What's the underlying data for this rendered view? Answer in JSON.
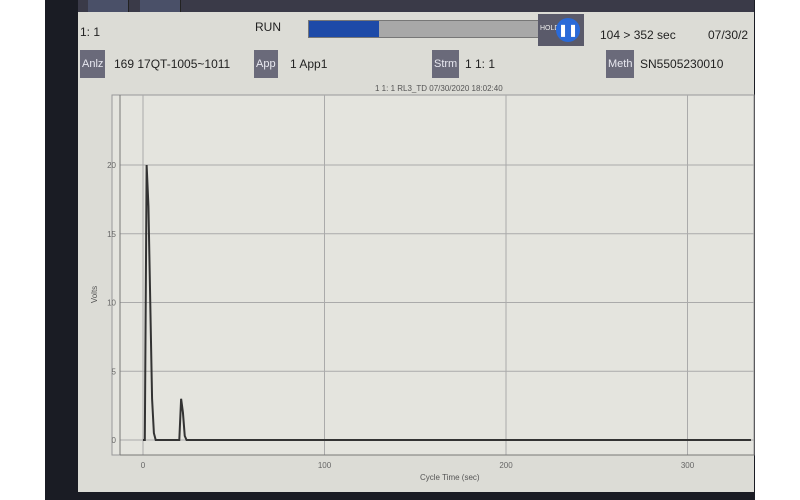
{
  "header": {
    "position": "1: 1",
    "run_label": "RUN",
    "progress_percent": 30,
    "hold_label": "HOLD",
    "time_status": "104 > 352 sec",
    "date": "07/30/2"
  },
  "info": [
    {
      "label": "Anlz",
      "value": "169 17QT-1005~1011"
    },
    {
      "label": "App",
      "value": "1 App1"
    },
    {
      "label": "Strm",
      "value": "1 1: 1"
    },
    {
      "label": "Meth",
      "value": "SN5505230010"
    }
  ],
  "chart_data": {
    "type": "line",
    "title": "1 1: 1 RL3_TD 07/30/2020 18:02:40",
    "xlabel": "Cycle Time (sec)",
    "ylabel": "Volts",
    "xlim": [
      -8,
      335
    ],
    "ylim": [
      -1.5,
      22
    ],
    "xticks": [
      0,
      100,
      200,
      300
    ],
    "yticks": [
      0,
      5,
      10,
      15,
      20
    ],
    "grid": true,
    "series": [
      {
        "color": "#333333",
        "x": [
          0,
          1,
          2,
          3,
          4,
          5,
          6,
          7,
          20,
          21,
          22,
          23,
          24,
          335
        ],
        "y": [
          0,
          0,
          20,
          17,
          10,
          3,
          0.5,
          0,
          0,
          3,
          2,
          0.3,
          0,
          0
        ]
      }
    ]
  }
}
